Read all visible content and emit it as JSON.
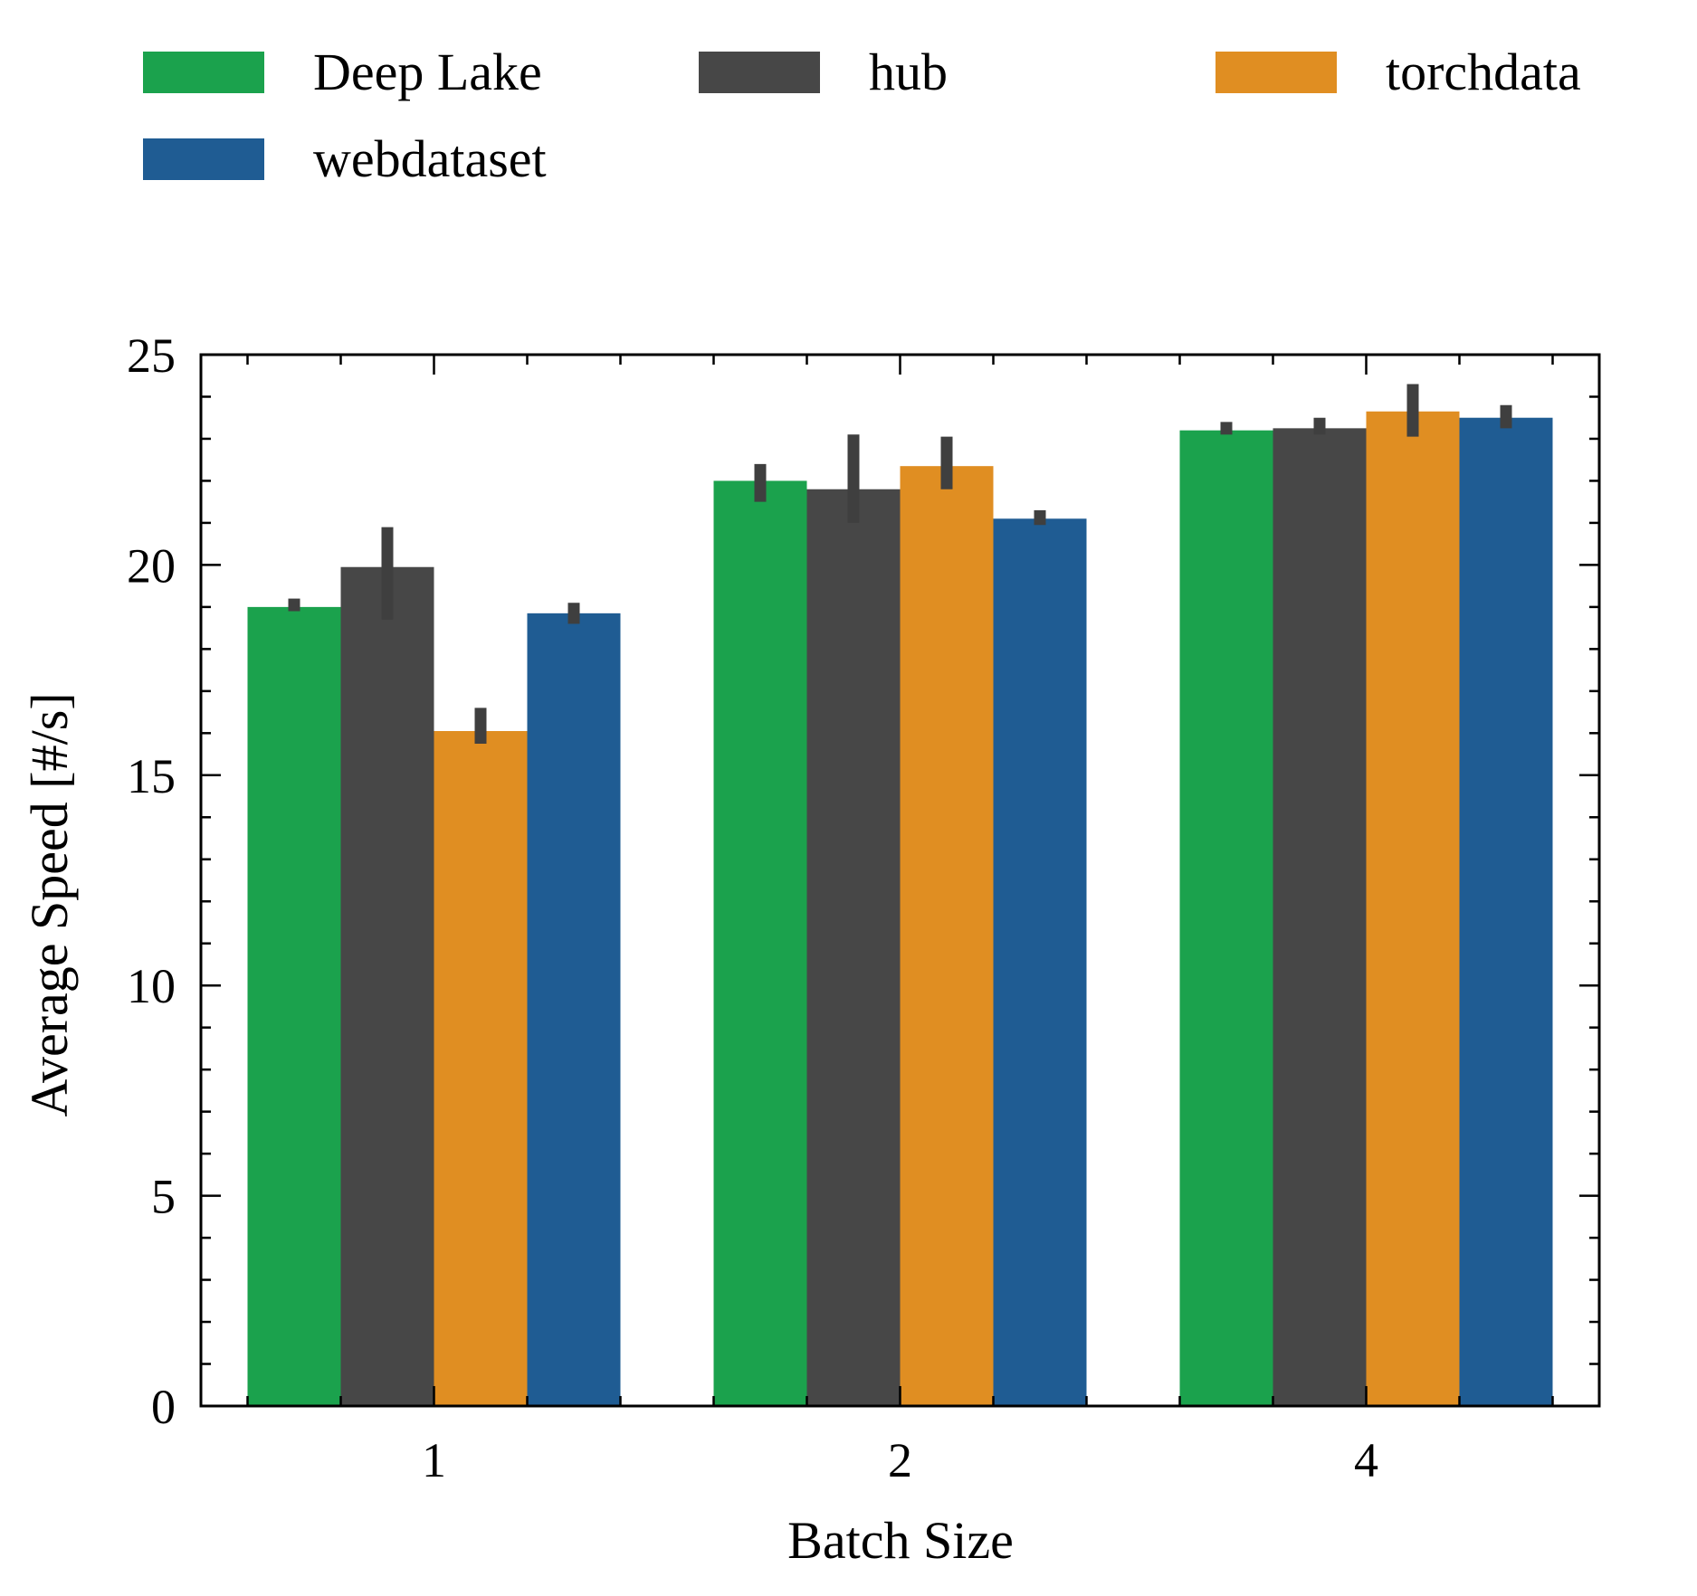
{
  "chart_data": {
    "type": "bar",
    "xlabel": "Batch Size",
    "ylabel": "Average Speed [#/s]",
    "categories": [
      "1",
      "2",
      "4"
    ],
    "ylim": [
      0,
      25
    ],
    "yticks": [
      "0",
      "5",
      "10",
      "15",
      "20",
      "25"
    ],
    "legend_position": "top, outside plot, 3 columns",
    "grid": false,
    "series": [
      {
        "name": "Deep Lake",
        "color": "#1ba24d",
        "values": [
          19.0,
          22.0,
          23.2
        ],
        "err_low": [
          18.9,
          21.5,
          23.1
        ],
        "err_high": [
          19.2,
          22.4,
          23.4
        ]
      },
      {
        "name": "hub",
        "color": "#474747",
        "values": [
          19.95,
          21.8,
          23.25
        ],
        "err_low": [
          18.7,
          21.0,
          23.1
        ],
        "err_high": [
          20.9,
          23.1,
          23.5
        ]
      },
      {
        "name": "torchdata",
        "color": "#e08e22",
        "values": [
          16.05,
          22.35,
          23.65
        ],
        "err_low": [
          15.75,
          21.8,
          23.05
        ],
        "err_high": [
          16.6,
          23.05,
          24.3
        ]
      },
      {
        "name": "webdataset",
        "color": "#1f5c93",
        "values": [
          18.85,
          21.1,
          23.5
        ],
        "err_low": [
          18.6,
          20.95,
          23.25
        ],
        "err_high": [
          19.1,
          21.3,
          23.8
        ]
      }
    ]
  }
}
